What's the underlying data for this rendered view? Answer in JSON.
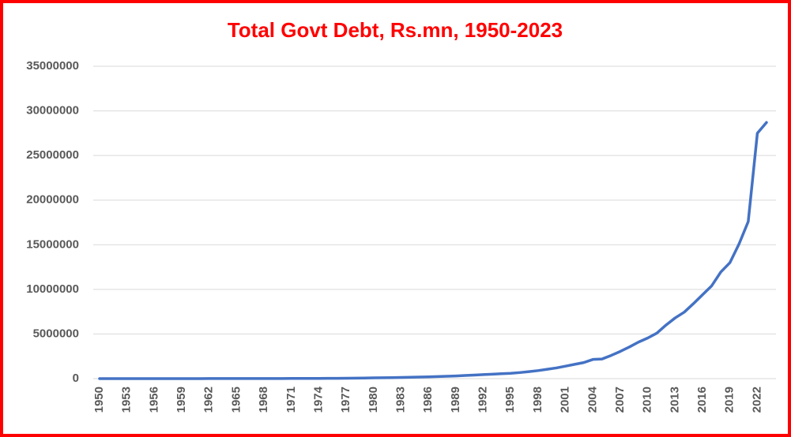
{
  "chart_data": {
    "type": "line",
    "title": "Total Govt Debt, Rs.mn, 1950-2023",
    "x": [
      1950,
      1951,
      1952,
      1953,
      1954,
      1955,
      1956,
      1957,
      1958,
      1959,
      1960,
      1961,
      1962,
      1963,
      1964,
      1965,
      1966,
      1967,
      1968,
      1969,
      1970,
      1971,
      1972,
      1973,
      1974,
      1975,
      1976,
      1977,
      1978,
      1979,
      1980,
      1981,
      1982,
      1983,
      1984,
      1985,
      1986,
      1987,
      1988,
      1989,
      1990,
      1991,
      1992,
      1993,
      1994,
      1995,
      1996,
      1997,
      1998,
      1999,
      2000,
      2001,
      2002,
      2003,
      2004,
      2005,
      2006,
      2007,
      2008,
      2009,
      2010,
      2011,
      2012,
      2013,
      2014,
      2015,
      2016,
      2017,
      2018,
      2019,
      2020,
      2021,
      2022,
      2023
    ],
    "values": [
      1500,
      1600,
      1700,
      1900,
      2000,
      2200,
      2500,
      2900,
      3400,
      4000,
      4600,
      5200,
      6000,
      6800,
      7500,
      8300,
      9200,
      10200,
      11500,
      13000,
      14500,
      17000,
      20000,
      23000,
      26000,
      32000,
      38000,
      48000,
      60000,
      72000,
      85000,
      100000,
      115000,
      130000,
      150000,
      175000,
      200000,
      230000,
      260000,
      300000,
      350000,
      400000,
      450000,
      500000,
      550000,
      600000,
      680000,
      780000,
      900000,
      1050000,
      1200000,
      1400000,
      1600000,
      1800000,
      2150000,
      2200000,
      2600000,
      3050000,
      3550000,
      4100000,
      4550000,
      5100000,
      6000000,
      6800000,
      7450000,
      8400000,
      9400000,
      10400000,
      11950000,
      13000000,
      15100000,
      17600000,
      27500000,
      28700000
    ],
    "color": "#4472c4",
    "xlim": [
      1950,
      2023
    ],
    "xticks": [
      1950,
      1953,
      1956,
      1959,
      1962,
      1965,
      1968,
      1971,
      1974,
      1977,
      1980,
      1983,
      1986,
      1989,
      1992,
      1995,
      1998,
      2001,
      2004,
      2007,
      2010,
      2013,
      2016,
      2019,
      2022
    ],
    "ylim": [
      0,
      35000000
    ],
    "yticks": [
      0,
      5000000,
      10000000,
      15000000,
      20000000,
      25000000,
      30000000,
      35000000
    ],
    "grid": true
  }
}
